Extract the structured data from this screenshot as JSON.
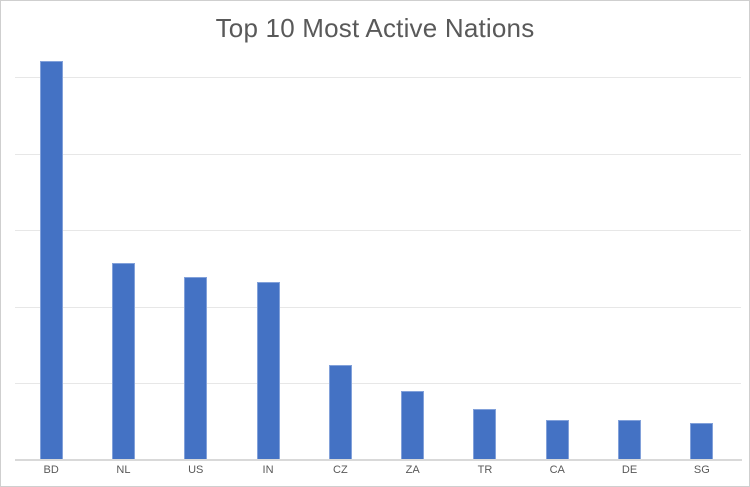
{
  "chart_data": {
    "type": "bar",
    "title": "Top 10 Most Active Nations",
    "categories": [
      "BD",
      "NL",
      "US",
      "IN",
      "CZ",
      "ZA",
      "TR",
      "CA",
      "DE",
      "SG"
    ],
    "values": [
      5.22,
      2.58,
      2.39,
      2.33,
      1.24,
      0.9,
      0.67,
      0.52,
      0.52,
      0.48
    ],
    "value_units": "relative; no y-axis tick labels shown, 1 unit = one gridline spacing",
    "xlabel": "",
    "ylabel": "",
    "ylim": [
      0,
      5.28
    ],
    "gridline_step": 1,
    "gridline_units": [
      1,
      2,
      3,
      4,
      5
    ],
    "grid": "horizontal",
    "legend": "none",
    "y_axis_labels_visible": false
  },
  "colors": {
    "bar_fill": "#4472c4",
    "bar_border": "#82a1da",
    "gridline": "#e7e7e7",
    "axis_line": "#d9d9d9",
    "title_text": "#595959",
    "label_text": "#595959",
    "frame_border": "#cfcfcf",
    "background": "#ffffff"
  }
}
